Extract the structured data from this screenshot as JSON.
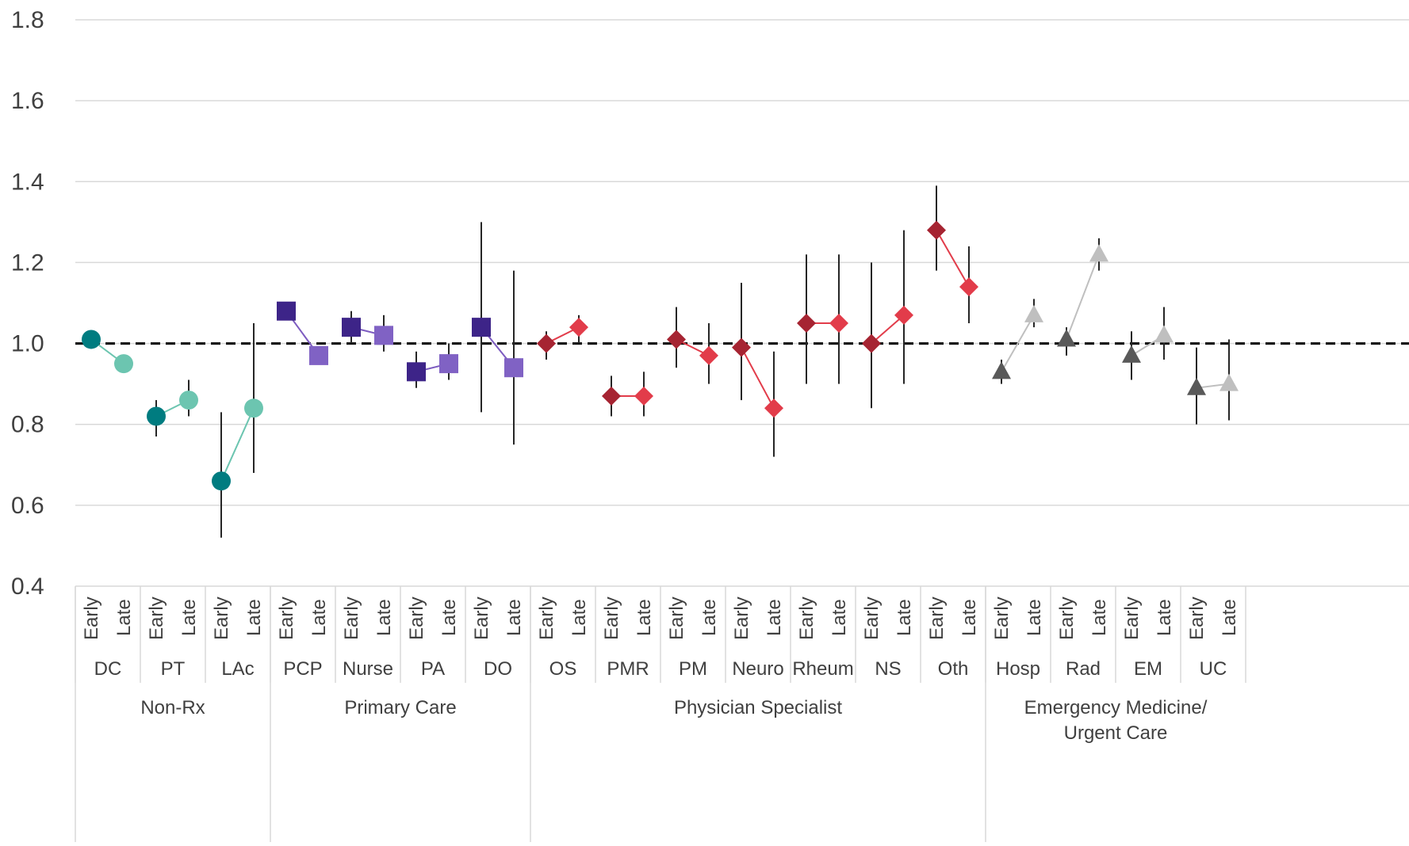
{
  "chart_data": {
    "type": "scatter",
    "title": "",
    "xlabel": "",
    "ylabel": "",
    "ylim": [
      0.4,
      1.8
    ],
    "yticks": [
      "0.4",
      "0.6",
      "0.8",
      "1.0",
      "1.2",
      "1.4",
      "1.6",
      "1.8"
    ],
    "reference_line": 1.0,
    "grid": true,
    "legend": "none",
    "period_labels": [
      "Early",
      "Late"
    ],
    "groups": [
      {
        "name": "Non-Rx",
        "color_early": "#007C80",
        "color_late": "#6CC5B0",
        "line_color": "#6CC5B0",
        "marker": "circle",
        "categories": [
          {
            "name": "DC",
            "early": {
              "value": 1.01,
              "low": null,
              "high": null
            },
            "late": {
              "value": 0.95,
              "low": null,
              "high": null
            }
          },
          {
            "name": "PT",
            "early": {
              "value": 0.82,
              "low": 0.77,
              "high": 0.86
            },
            "late": {
              "value": 0.86,
              "low": 0.82,
              "high": 0.91
            }
          },
          {
            "name": "LAc",
            "early": {
              "value": 0.66,
              "low": 0.52,
              "high": 0.83
            },
            "late": {
              "value": 0.84,
              "low": 0.68,
              "high": 1.05
            }
          }
        ]
      },
      {
        "name": "Primary Care",
        "color_early": "#3D2488",
        "color_late": "#8062C4",
        "line_color": "#7D5CC0",
        "marker": "square",
        "categories": [
          {
            "name": "PCP",
            "early": {
              "value": 1.08,
              "low": null,
              "high": null
            },
            "late": {
              "value": 0.97,
              "low": null,
              "high": null
            }
          },
          {
            "name": "Nurse",
            "early": {
              "value": 1.04,
              "low": 1.0,
              "high": 1.08
            },
            "late": {
              "value": 1.02,
              "low": 0.98,
              "high": 1.07
            }
          },
          {
            "name": "PA",
            "early": {
              "value": 0.93,
              "low": 0.89,
              "high": 0.98
            },
            "late": {
              "value": 0.95,
              "low": 0.91,
              "high": 1.0
            }
          },
          {
            "name": "DO",
            "early": {
              "value": 1.04,
              "low": 0.83,
              "high": 1.3
            },
            "late": {
              "value": 0.94,
              "low": 0.75,
              "high": 1.18
            }
          }
        ]
      },
      {
        "name": "Physician Specialist",
        "color_early": "#A62432",
        "color_late": "#E23C4A",
        "line_color": "#E23C4A",
        "marker": "diamond",
        "categories": [
          {
            "name": "OS",
            "early": {
              "value": 1.0,
              "low": 0.96,
              "high": 1.03
            },
            "late": {
              "value": 1.04,
              "low": 1.0,
              "high": 1.07
            }
          },
          {
            "name": "PMR",
            "early": {
              "value": 0.87,
              "low": 0.82,
              "high": 0.92
            },
            "late": {
              "value": 0.87,
              "low": 0.82,
              "high": 0.93
            }
          },
          {
            "name": "PM",
            "early": {
              "value": 1.01,
              "low": 0.94,
              "high": 1.09
            },
            "late": {
              "value": 0.97,
              "low": 0.9,
              "high": 1.05
            }
          },
          {
            "name": "Neuro",
            "early": {
              "value": 0.99,
              "low": 0.86,
              "high": 1.15
            },
            "late": {
              "value": 0.84,
              "low": 0.72,
              "high": 0.98
            }
          },
          {
            "name": "Rheum",
            "early": {
              "value": 1.05,
              "low": 0.9,
              "high": 1.22
            },
            "late": {
              "value": 1.05,
              "low": 0.9,
              "high": 1.22
            }
          },
          {
            "name": "NS",
            "early": {
              "value": 1.0,
              "low": 0.84,
              "high": 1.2
            },
            "late": {
              "value": 1.07,
              "low": 0.9,
              "high": 1.28
            }
          },
          {
            "name": "Oth",
            "early": {
              "value": 1.28,
              "low": 1.18,
              "high": 1.39
            },
            "late": {
              "value": 1.14,
              "low": 1.05,
              "high": 1.24
            }
          }
        ]
      },
      {
        "name": "Emergency Medicine/ Urgent Care",
        "name_lines": [
          "Emergency Medicine/",
          "Urgent Care"
        ],
        "color_early": "#595959",
        "color_late": "#BFBFBF",
        "line_color": "#BFBFBF",
        "marker": "triangle",
        "categories": [
          {
            "name": "Hosp",
            "early": {
              "value": 0.93,
              "low": 0.9,
              "high": 0.96
            },
            "late": {
              "value": 1.07,
              "low": 1.04,
              "high": 1.11
            }
          },
          {
            "name": "Rad",
            "early": {
              "value": 1.01,
              "low": 0.97,
              "high": 1.04
            },
            "late": {
              "value": 1.22,
              "low": 1.18,
              "high": 1.26
            }
          },
          {
            "name": "EM",
            "early": {
              "value": 0.97,
              "low": 0.91,
              "high": 1.03
            },
            "late": {
              "value": 1.02,
              "low": 0.96,
              "high": 1.09
            }
          },
          {
            "name": "UC",
            "early": {
              "value": 0.89,
              "low": 0.8,
              "high": 0.99
            },
            "late": {
              "value": 0.9,
              "low": 0.81,
              "high": 1.01
            }
          }
        ]
      }
    ]
  }
}
